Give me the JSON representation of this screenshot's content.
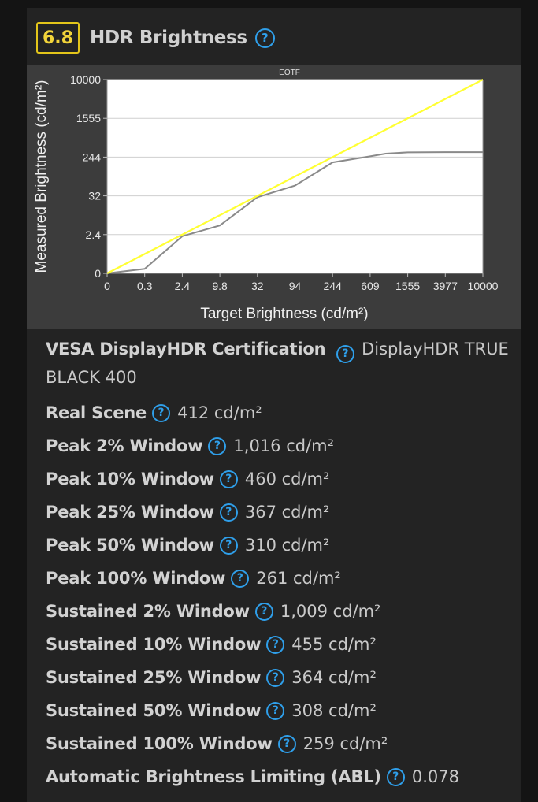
{
  "header": {
    "score": "6.8",
    "title": "HDR Brightness",
    "help_glyph": "?"
  },
  "colors": {
    "score_border": "#e3c51a",
    "help_icon": "#2f9fea",
    "target_line": "#ffff33",
    "measured_line": "#8a8a8a"
  },
  "chart_data": {
    "type": "line",
    "title": "EOTF",
    "xlabel": "Target Brightness (cd/m²)",
    "ylabel": "Measured Brightness (cd/m²)",
    "x_ticks": [
      "0",
      "0.3",
      "2.4",
      "9.8",
      "32",
      "94",
      "244",
      "609",
      "1555",
      "3977",
      "10000"
    ],
    "y_ticks": [
      "10000",
      "1555",
      "244",
      "32",
      "2.4",
      "0"
    ],
    "grid": true,
    "series": [
      {
        "color": "#ffff33",
        "x": [
          0,
          10000
        ],
        "y": [
          0,
          10000
        ]
      },
      {
        "color": "#8a8a8a",
        "x": [
          0,
          0.3,
          2.4,
          9.8,
          32,
          94,
          244,
          609,
          1000,
          1555,
          3977,
          10000
        ],
        "y": [
          0,
          0.28,
          2.3,
          9.4,
          31,
          88,
          215,
          270,
          360,
          405,
          410,
          412
        ]
      }
    ]
  },
  "specs": [
    {
      "label": "VESA DisplayHDR Certification",
      "value": "DisplayHDR TRUE BLACK 400"
    },
    {
      "label": "Real Scene",
      "value": "412 cd/m²"
    },
    {
      "label": "Peak 2% Window",
      "value": "1,016 cd/m²"
    },
    {
      "label": "Peak 10% Window",
      "value": "460 cd/m²"
    },
    {
      "label": "Peak 25% Window",
      "value": "367 cd/m²"
    },
    {
      "label": "Peak 50% Window",
      "value": "310 cd/m²"
    },
    {
      "label": "Peak 100% Window",
      "value": "261 cd/m²"
    },
    {
      "label": "Sustained 2% Window",
      "value": "1,009 cd/m²"
    },
    {
      "label": "Sustained 10% Window",
      "value": "455 cd/m²"
    },
    {
      "label": "Sustained 25% Window",
      "value": "364 cd/m²"
    },
    {
      "label": "Sustained 50% Window",
      "value": "308 cd/m²"
    },
    {
      "label": "Sustained 100% Window",
      "value": "259 cd/m²"
    },
    {
      "label": "Automatic Brightness Limiting (ABL)",
      "value": "0.078"
    }
  ]
}
